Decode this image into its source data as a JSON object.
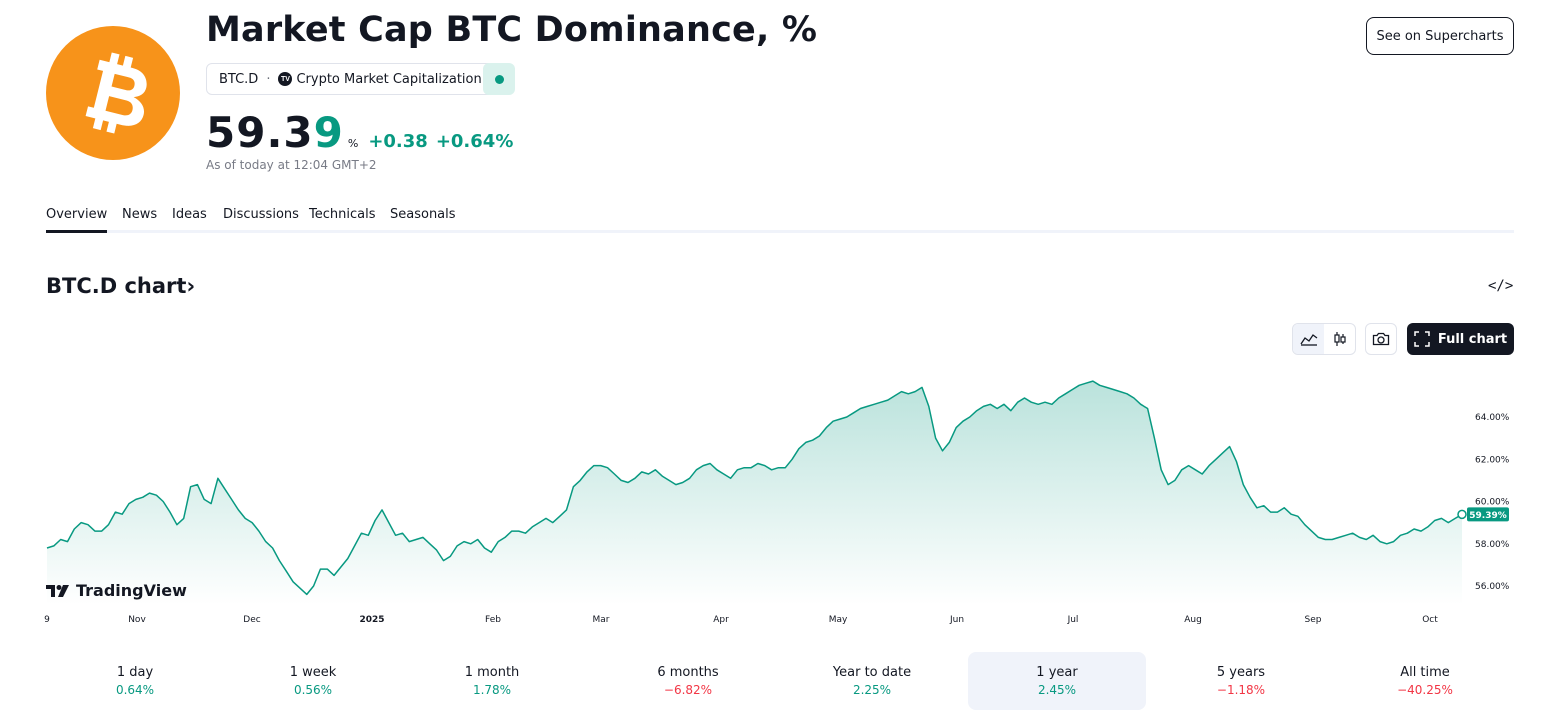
{
  "header": {
    "title": "Market Cap BTC Dominance, %",
    "symbol": "BTC.D",
    "separator": "·",
    "exchange_label": "Crypto Market Capitalization",
    "tv_badge": "TV",
    "status_color": "#089981",
    "logo_color": "#f7931a",
    "logo_icon": "bitcoin-icon"
  },
  "price": {
    "main": "59.3",
    "last_digit": "9",
    "unit": "%",
    "change_abs": "+0.38",
    "change_pct": "+0.64%",
    "as_of": "As of today at 12:04 GMT+2"
  },
  "actions": {
    "supercharts": "See on Supercharts",
    "full_chart": "Full chart",
    "embed": "</>"
  },
  "tabs": [
    "Overview",
    "News",
    "Ideas",
    "Discussions",
    "Technicals",
    "Seasonals"
  ],
  "active_tab": "Overview",
  "chart_section": {
    "title": "BTC.D chart",
    "chevron": "›",
    "watermark": "TradingView"
  },
  "chart_data": {
    "type": "area",
    "title": "",
    "xlabel": "",
    "ylabel": "",
    "ylim": [
      55,
      66.5
    ],
    "y_ticks": [
      "64.00%",
      "62.00%",
      "60.00%",
      "58.00%",
      "56.00%"
    ],
    "y_tick_values": [
      64,
      62,
      60,
      58,
      56
    ],
    "x_ticks": [
      "9",
      "Nov",
      "Dec",
      "2025",
      "Feb",
      "Mar",
      "Apr",
      "May",
      "Jun",
      "Jul",
      "Aug",
      "Sep",
      "Oct"
    ],
    "last_value_label": "59.39%",
    "line_color": "#089981",
    "grid": false,
    "series": [
      {
        "values": [
          57.8,
          57.9,
          58.2,
          58.1,
          58.7,
          59.0,
          58.9,
          58.6,
          58.6,
          58.9,
          59.5,
          59.4,
          59.9,
          60.1,
          60.2,
          60.4,
          60.3,
          60.0,
          59.5,
          58.9,
          59.2,
          60.7,
          60.8,
          60.1,
          59.9,
          61.1,
          60.6,
          60.1,
          59.6,
          59.2,
          59.0,
          58.6,
          58.1,
          57.8,
          57.2,
          56.7,
          56.2,
          55.9,
          55.6,
          56.0,
          56.8,
          56.8,
          56.5,
          56.9,
          57.3,
          57.9,
          58.5,
          58.4,
          59.1,
          59.6,
          59.0,
          58.4,
          58.5,
          58.1,
          58.2,
          58.3,
          58.0,
          57.7,
          57.2,
          57.4,
          57.9,
          58.1,
          58.0,
          58.2,
          57.8,
          57.6,
          58.1,
          58.3,
          58.6,
          58.6,
          58.5,
          58.8,
          59.0,
          59.2,
          59.0,
          59.3,
          59.6,
          60.7,
          61.0,
          61.4,
          61.7,
          61.7,
          61.6,
          61.3,
          61.0,
          60.9,
          61.1,
          61.4,
          61.3,
          61.5,
          61.2,
          61.0,
          60.8,
          60.9,
          61.1,
          61.5,
          61.7,
          61.8,
          61.5,
          61.3,
          61.1,
          61.5,
          61.6,
          61.6,
          61.8,
          61.7,
          61.5,
          61.6,
          61.6,
          62.0,
          62.5,
          62.8,
          62.9,
          63.1,
          63.5,
          63.8,
          63.9,
          64.0,
          64.2,
          64.4,
          64.5,
          64.6,
          64.7,
          64.8,
          65.0,
          65.2,
          65.1,
          65.2,
          65.4,
          64.5,
          63.0,
          62.4,
          62.8,
          63.5,
          63.8,
          64.0,
          64.3,
          64.5,
          64.6,
          64.4,
          64.6,
          64.3,
          64.7,
          64.9,
          64.7,
          64.6,
          64.7,
          64.6,
          64.9,
          65.1,
          65.3,
          65.5,
          65.6,
          65.7,
          65.5,
          65.4,
          65.3,
          65.2,
          65.1,
          64.9,
          64.6,
          64.4,
          63.0,
          61.5,
          60.8,
          61.0,
          61.5,
          61.7,
          61.5,
          61.3,
          61.7,
          62.0,
          62.3,
          62.6,
          61.9,
          60.8,
          60.2,
          59.7,
          59.8,
          59.5,
          59.5,
          59.7,
          59.4,
          59.3,
          58.9,
          58.6,
          58.3,
          58.2,
          58.2,
          58.3,
          58.4,
          58.5,
          58.3,
          58.2,
          58.4,
          58.1,
          58.0,
          58.1,
          58.4,
          58.5,
          58.7,
          58.6,
          58.8,
          59.1,
          59.2,
          59.0,
          59.2,
          59.39
        ]
      }
    ]
  },
  "performance": [
    {
      "label": "1 day",
      "value": "0.64%",
      "sign": "pos"
    },
    {
      "label": "1 week",
      "value": "0.56%",
      "sign": "pos"
    },
    {
      "label": "1 month",
      "value": "1.78%",
      "sign": "pos"
    },
    {
      "label": "6 months",
      "value": "−6.82%",
      "sign": "neg"
    },
    {
      "label": "Year to date",
      "value": "2.25%",
      "sign": "pos"
    },
    {
      "label": "1 year",
      "value": "2.45%",
      "sign": "pos"
    },
    {
      "label": "5 years",
      "value": "−1.18%",
      "sign": "neg"
    },
    {
      "label": "All time",
      "value": "−40.25%",
      "sign": "neg"
    }
  ],
  "performance_selected": "1 year",
  "colors": {
    "positive": "#089981",
    "negative": "#f23645",
    "text": "#131722",
    "muted": "#787b86"
  }
}
